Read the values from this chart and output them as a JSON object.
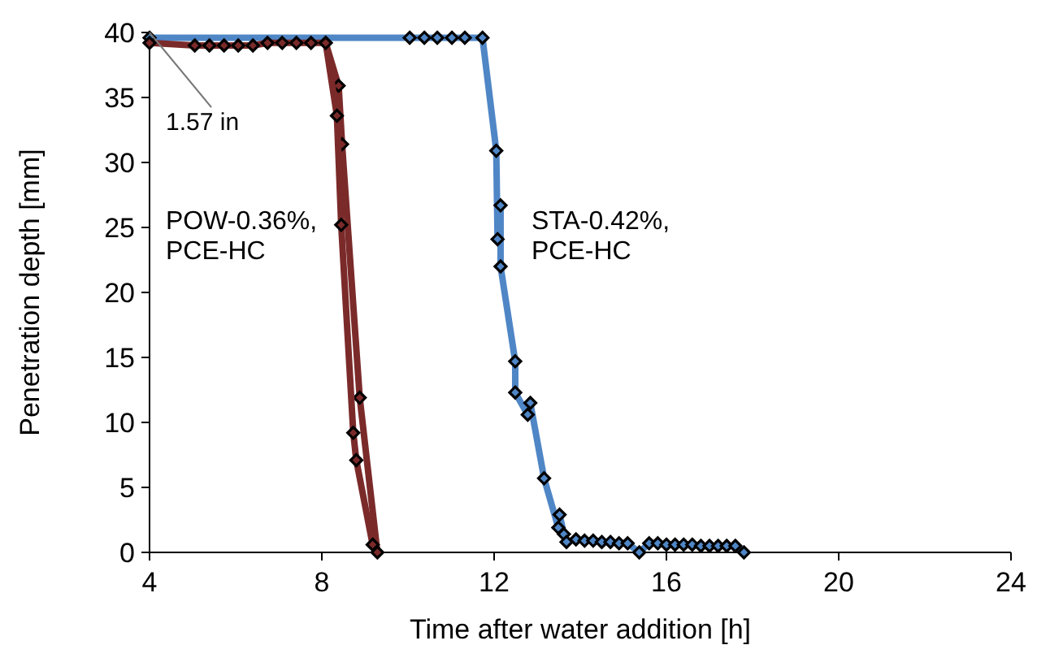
{
  "chart_data": {
    "type": "line",
    "xlabel": "Time after water addition [h]",
    "ylabel": "Penetration depth [mm]",
    "xlim": [
      4,
      24
    ],
    "xticks": [
      4,
      8,
      12,
      16,
      20,
      24
    ],
    "ylim": [
      0,
      40
    ],
    "yticks": [
      0,
      5,
      10,
      15,
      20,
      25,
      30,
      35,
      40
    ],
    "grid": false,
    "marker": "diamond",
    "line_style": "solid",
    "series": [
      {
        "color": "#4f86c6",
        "x": [
          4,
          10.04,
          10.38,
          10.68,
          11.02,
          11.32,
          11.73,
          12.05,
          12.08,
          12.15,
          12.15,
          12.49,
          12.49,
          12.78,
          12.84,
          13.16,
          13.49,
          13.52,
          13.62,
          13.68,
          13.9,
          14.1,
          14.3,
          14.5,
          14.7,
          14.9,
          15.1,
          15.37,
          15.6,
          15.8,
          16,
          16.2,
          16.4,
          16.6,
          16.8,
          17,
          17.2,
          17.4,
          17.6,
          17.8
        ],
        "values": [
          39.6,
          39.6,
          39.6,
          39.6,
          39.6,
          39.6,
          39.6,
          30.9,
          24.1,
          26.7,
          22,
          14.7,
          12.3,
          10.6,
          11.5,
          5.7,
          1.9,
          2.9,
          1.4,
          0.8,
          1,
          0.9,
          0.9,
          0.8,
          0.8,
          0.7,
          0.7,
          0,
          0.7,
          0.7,
          0.6,
          0.6,
          0.6,
          0.6,
          0.5,
          0.5,
          0.5,
          0.5,
          0.5,
          0
        ]
      },
      {
        "color": "#7b2a2a",
        "x": [
          4,
          5.05,
          5.39,
          5.73,
          6.06,
          6.4,
          6.74,
          7.08,
          7.41,
          7.75,
          8.09,
          8.39,
          8.47,
          8.88,
          9.29
        ],
        "values": [
          39.2,
          39,
          39,
          39,
          39,
          39,
          39.2,
          39.2,
          39.2,
          39.2,
          39.2,
          35.9,
          31.4,
          11.9,
          0
        ]
      },
      {
        "color": "#7b2a2a",
        "x": [
          8.09,
          8.35,
          8.45,
          8.73,
          8.8,
          9.18
        ],
        "values": [
          39.2,
          33.6,
          25.2,
          9.2,
          7.1,
          0.6
        ]
      }
    ],
    "annotations": [
      {
        "text": "1.57 in",
        "x": 4,
        "y": 40
      },
      "POW-0.36%,\nPCE-HC",
      "STA-0.42%,\nPCE-HC"
    ]
  }
}
